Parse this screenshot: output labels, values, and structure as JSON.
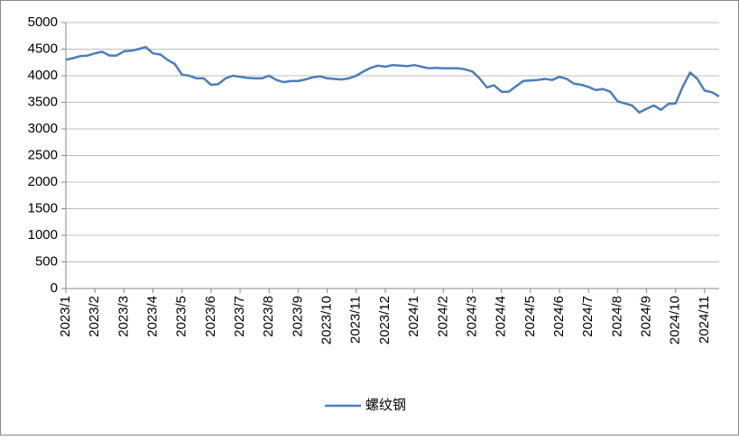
{
  "chart_data": {
    "type": "line",
    "categories": [
      "2023/1",
      null,
      null,
      null,
      "2023/2",
      null,
      null,
      null,
      "2023/3",
      null,
      null,
      null,
      "2023/4",
      null,
      null,
      null,
      "2023/5",
      null,
      null,
      null,
      "2023/6",
      null,
      null,
      null,
      "2023/7",
      null,
      null,
      null,
      "2023/8",
      null,
      null,
      null,
      "2023/9",
      null,
      null,
      null,
      "2023/10",
      null,
      null,
      null,
      "2023/11",
      null,
      null,
      null,
      "2023/12",
      null,
      null,
      null,
      "2024/1",
      null,
      null,
      null,
      "2024/2",
      null,
      null,
      null,
      "2024/3",
      null,
      null,
      null,
      "2024/4",
      null,
      null,
      null,
      "2024/5",
      null,
      null,
      null,
      "2024/6",
      null,
      null,
      null,
      "2024/7",
      null,
      null,
      null,
      "2024/8",
      null,
      null,
      null,
      "2024/9",
      null,
      null,
      null,
      "2024/10",
      null,
      null,
      null,
      "2024/11",
      null,
      null
    ],
    "series": [
      {
        "name": "螺纹钢",
        "color": "#4a7ebb",
        "values": [
          4300,
          4330,
          4370,
          4380,
          4420,
          4450,
          4380,
          4380,
          4460,
          4470,
          4500,
          4540,
          4420,
          4400,
          4300,
          4220,
          4020,
          4000,
          3950,
          3950,
          3830,
          3840,
          3950,
          4000,
          3980,
          3960,
          3950,
          3950,
          4000,
          3920,
          3880,
          3900,
          3900,
          3930,
          3970,
          3990,
          3950,
          3940,
          3930,
          3950,
          4000,
          4080,
          4150,
          4190,
          4170,
          4200,
          4190,
          4180,
          4200,
          4170,
          4140,
          4150,
          4140,
          4140,
          4140,
          4120,
          4080,
          3950,
          3780,
          3820,
          3700,
          3700,
          3800,
          3900,
          3910,
          3920,
          3940,
          3920,
          3980,
          3940,
          3850,
          3830,
          3790,
          3730,
          3750,
          3700,
          3520,
          3480,
          3440,
          3310,
          3380,
          3440,
          3360,
          3470,
          3480,
          3800,
          4060,
          3940,
          3720,
          3690,
          3610
        ]
      }
    ],
    "ylim": [
      0,
      5000
    ],
    "yticks": [
      0,
      500,
      1000,
      1500,
      2000,
      2500,
      3000,
      3500,
      4000,
      4500,
      5000
    ],
    "grid": true,
    "legend": "bottom"
  }
}
